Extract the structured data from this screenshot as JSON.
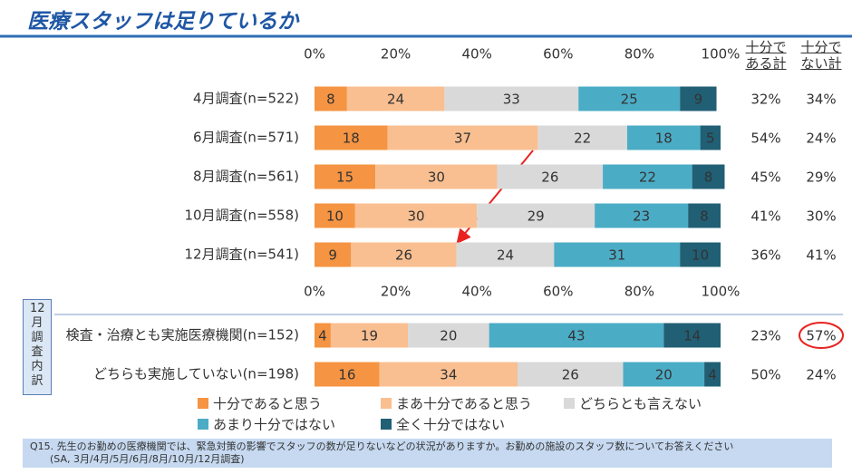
{
  "title": "医療スタッフは足りているか",
  "chart_data": [
    {
      "type": "bar",
      "orientation": "horizontal",
      "stacked": true,
      "categories": [
        "4月調査(n=522)",
        "6月調査(n=571)",
        "8月調査(n=561)",
        "10月調査(n=558)",
        "12月調査(n=541)"
      ],
      "series": [
        {
          "name": "十分であると思う",
          "color": "#f59442",
          "label_color": "#ffffff",
          "values": [
            8,
            18,
            15,
            10,
            9
          ]
        },
        {
          "name": "まあ十分であると思う",
          "color": "#f9bf91",
          "label_color": "#333333",
          "values": [
            24,
            37,
            30,
            30,
            26
          ]
        },
        {
          "name": "どちらとも言えない",
          "color": "#d9d9d9",
          "label_color": "#333333",
          "values": [
            33,
            22,
            26,
            29,
            24
          ]
        },
        {
          "name": "あまり十分ではない",
          "color": "#4bacc6",
          "label_color": "#ffffff",
          "values": [
            25,
            18,
            22,
            23,
            31
          ]
        },
        {
          "name": "全く十分ではない",
          "color": "#215f75",
          "label_color": "#ffffff",
          "values": [
            9,
            5,
            8,
            8,
            10
          ]
        }
      ],
      "xlim": [
        0,
        100
      ],
      "xticks": [
        {
          "value": 0,
          "label": "0%"
        },
        {
          "value": 20,
          "label": "20%"
        },
        {
          "value": 40,
          "label": "40%"
        },
        {
          "value": 60,
          "label": "60%"
        },
        {
          "value": 80,
          "label": "80%"
        },
        {
          "value": 100,
          "label": "100%"
        }
      ],
      "totals": [
        {
          "name": "十分である計",
          "values": [
            32,
            54,
            45,
            41,
            36
          ],
          "value_labels": [
            "32%",
            "54%",
            "45%",
            "41%",
            "36%"
          ]
        },
        {
          "name": "十分でない計",
          "values": [
            34,
            24,
            29,
            30,
            41
          ],
          "value_labels": [
            "34%",
            "24%",
            "29%",
            "30%",
            "41%"
          ]
        }
      ]
    },
    {
      "type": "bar",
      "orientation": "horizontal",
      "stacked": true,
      "group_label": "12月調査内訳",
      "categories": [
        "検査・治療とも実施医療機関(n=152)",
        "どちらも実施していない(n=198)"
      ],
      "series": [
        {
          "name": "十分であると思う",
          "color": "#f59442",
          "label_color": "#ffffff",
          "values": [
            4,
            16
          ]
        },
        {
          "name": "まあ十分であると思う",
          "color": "#f9bf91",
          "label_color": "#333333",
          "values": [
            19,
            34
          ]
        },
        {
          "name": "どちらとも言えない",
          "color": "#d9d9d9",
          "label_color": "#333333",
          "values": [
            20,
            26
          ]
        },
        {
          "name": "あまり十分ではない",
          "color": "#4bacc6",
          "label_color": "#ffffff",
          "values": [
            43,
            20
          ]
        },
        {
          "name": "全く十分ではない",
          "color": "#215f75",
          "label_color": "#ffffff",
          "values": [
            14,
            4
          ]
        }
      ],
      "xlim": [
        0,
        100
      ],
      "totals": [
        {
          "values": [
            23,
            50
          ],
          "value_labels": [
            "23%",
            "50%"
          ]
        },
        {
          "values": [
            57,
            24
          ],
          "value_labels": [
            "57%",
            "24%"
          ],
          "highlight": [
            0
          ]
        }
      ]
    }
  ],
  "footnote": [
    "Q15. 先生のお勤めの医療機関では、緊急対策の影響でスタッフの数が足りないなどの状況がありますか。お勤めの施設のスタッフ数についてお答えください",
    "(SA, 3月/4月/5月/6月/8月/10月/12月調査)"
  ]
}
